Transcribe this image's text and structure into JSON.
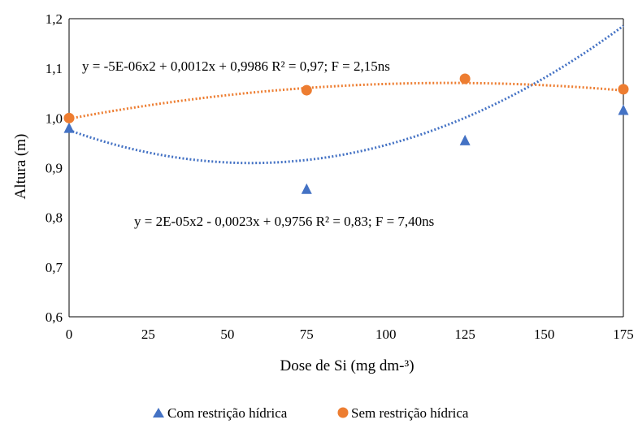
{
  "chart_data": {
    "type": "scatter",
    "xlabel": "Dose de Si (mg dm-³)",
    "ylabel": "Altura (m)",
    "xlim": [
      0,
      175
    ],
    "ylim": [
      0.6,
      1.2
    ],
    "x_ticks": [
      "0",
      "25",
      "50",
      "75",
      "100",
      "125",
      "150",
      "175"
    ],
    "y_ticks": [
      "0,6",
      "0,7",
      "0,8",
      "0,9",
      "1,0",
      "1,1",
      "1,2"
    ],
    "grid": false,
    "legend_position": "bottom",
    "series": [
      {
        "name": "Com restrição hídrica",
        "marker": "triangle",
        "color": "#4472C4",
        "x": [
          0,
          75,
          125,
          175
        ],
        "y": [
          0.98,
          0.857,
          0.955,
          1.016
        ],
        "trendline": {
          "type": "polynomial",
          "a": 2e-05,
          "b": -0.0023,
          "c": 0.9756
        },
        "equation": "y = 2E-05x2  - 0,0023x + 0,9756 R² = 0,83; F = 7,40ns"
      },
      {
        "name": "Sem restrição hídrica",
        "marker": "circle",
        "color": "#ED7D31",
        "x": [
          0,
          75,
          125,
          175
        ],
        "y": [
          1.0,
          1.056,
          1.079,
          1.058
        ],
        "trendline": {
          "type": "polynomial",
          "a": -5e-06,
          "b": 0.0012,
          "c": 0.9986
        },
        "equation": "y = -5E-06x2  + 0,0012x + 0,9986 R² = 0,97; F = 2,15ns"
      }
    ]
  }
}
